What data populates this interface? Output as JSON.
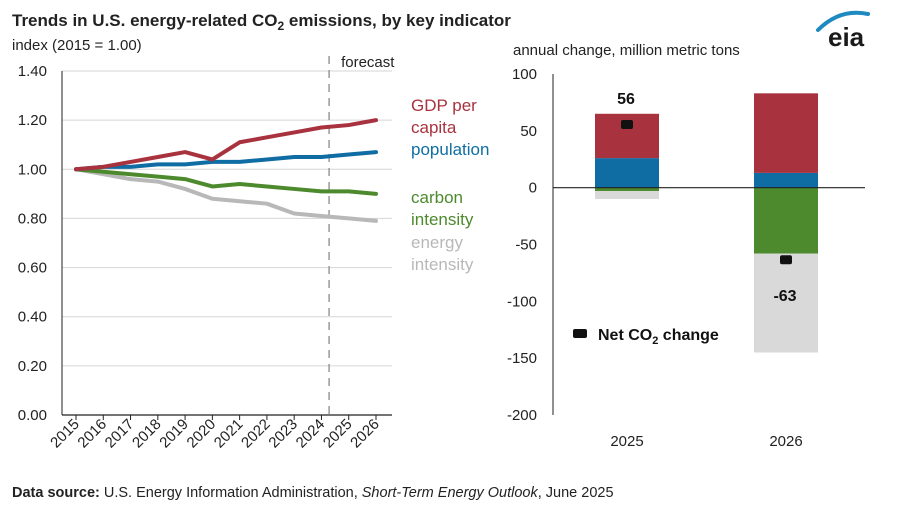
{
  "chart": {
    "title_pre": "Trends in U.S. energy-related CO",
    "title_sub": "2",
    "title_post": " emissions, by key indicator"
  },
  "logo": {
    "text": "eia"
  },
  "source": {
    "label": "Data source:",
    "text_pre": " U.S. Energy Information Administration, ",
    "italic": "Short-Term Energy Outlook",
    "text_post": ", June 2025"
  },
  "chart_data": [
    {
      "type": "line",
      "ylabel": "index (2015 = 1.00)",
      "ylim": [
        0,
        1.4
      ],
      "yticks": [
        "0.00",
        "0.20",
        "0.40",
        "0.60",
        "0.80",
        "1.00",
        "1.20",
        "1.40"
      ],
      "x": [
        "2015",
        "2016",
        "2017",
        "2018",
        "2019",
        "2020",
        "2021",
        "2022",
        "2023",
        "2024",
        "2025",
        "2026"
      ],
      "forecast_start": "2024",
      "forecast_label": "forecast",
      "grid": true,
      "series": [
        {
          "name": "GDP per capita",
          "label_lines": [
            "GDP per",
            "capita"
          ],
          "color": "#a8323e",
          "values": [
            1.0,
            1.01,
            1.03,
            1.05,
            1.07,
            1.04,
            1.11,
            1.13,
            1.15,
            1.17,
            1.18,
            1.2
          ]
        },
        {
          "name": "population",
          "label_lines": [
            "population"
          ],
          "color": "#0f6da4",
          "values": [
            1.0,
            1.01,
            1.01,
            1.02,
            1.02,
            1.03,
            1.03,
            1.04,
            1.05,
            1.05,
            1.06,
            1.07
          ]
        },
        {
          "name": "carbon intensity",
          "label_lines": [
            "carbon",
            "intensity"
          ],
          "color": "#4d8a2d",
          "values": [
            1.0,
            0.99,
            0.98,
            0.97,
            0.96,
            0.93,
            0.94,
            0.93,
            0.92,
            0.91,
            0.91,
            0.9
          ]
        },
        {
          "name": "energy intensity",
          "label_lines": [
            "energy",
            "intensity"
          ],
          "color": "#b8b8b8",
          "values": [
            1.0,
            0.98,
            0.96,
            0.95,
            0.92,
            0.88,
            0.87,
            0.86,
            0.82,
            0.81,
            0.8,
            0.79
          ]
        }
      ]
    },
    {
      "type": "bar",
      "ylabel": "annual change, million metric tons",
      "ylim": [
        -200,
        100
      ],
      "yticks": [
        "100",
        "50",
        "0",
        "-50",
        "-100",
        "-150",
        "-200"
      ],
      "categories": [
        "2025",
        "2026"
      ],
      "stacked": true,
      "series": [
        {
          "name": "population",
          "color": "#0f6da4",
          "values": [
            26,
            13
          ]
        },
        {
          "name": "GDP per capita",
          "color": "#a8323e",
          "values": [
            39,
            70
          ]
        },
        {
          "name": "carbon intensity",
          "color": "#4d8a2d",
          "values": [
            -3,
            -58
          ]
        },
        {
          "name": "energy intensity",
          "color": "#d9d9d9",
          "values": [
            -7,
            -87
          ]
        }
      ],
      "net_change": {
        "values": [
          56,
          -63
        ],
        "labels": [
          "56",
          "-63"
        ]
      },
      "legend_pre": "Net CO",
      "legend_sub": "2",
      "legend_post": " change",
      "legend_position": "bottom-left"
    }
  ]
}
